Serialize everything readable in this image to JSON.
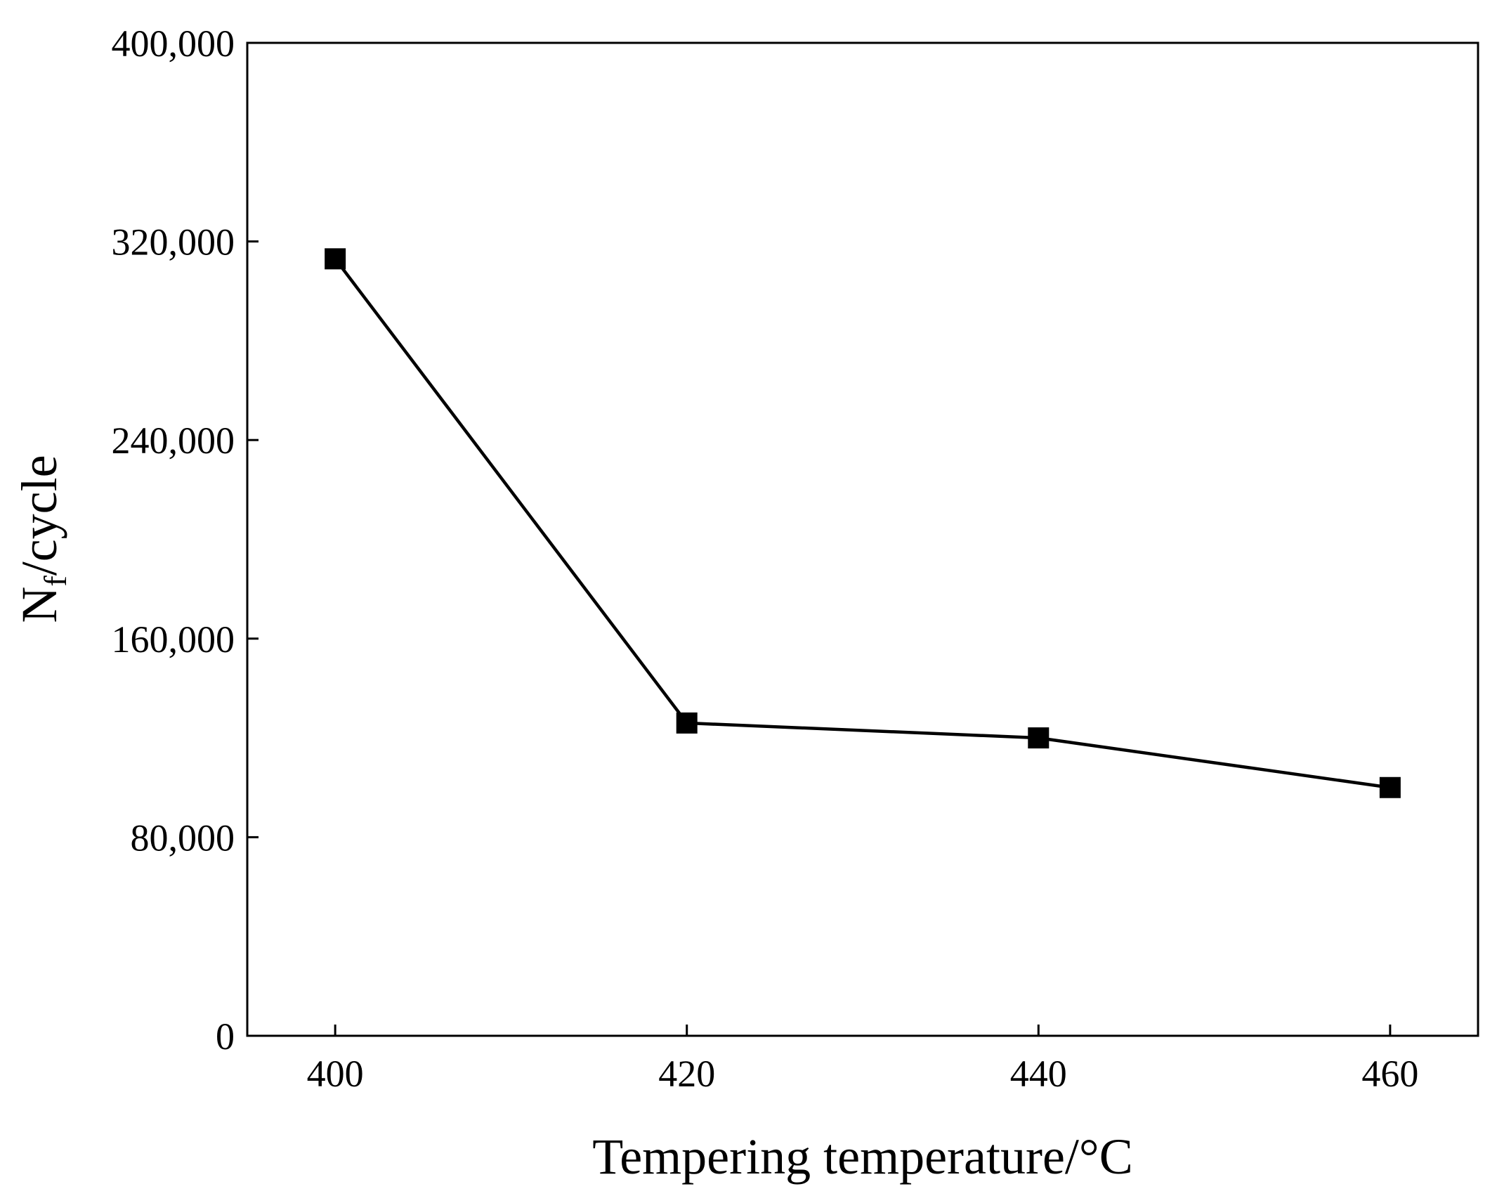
{
  "chart_data": {
    "type": "line",
    "title": "",
    "xlabel": "Tempering temperature/°C",
    "ylabel_main": "N",
    "ylabel_subscript": "f",
    "ylabel_suffix": "/cycle",
    "x_ticks": [
      "400",
      "420",
      "440",
      "460"
    ],
    "y_ticks": [
      "0",
      "80,000",
      "160,000",
      "240,000",
      "320,000",
      "400,000"
    ],
    "xlim": [
      395,
      465
    ],
    "ylim": [
      0,
      400000
    ],
    "grid": false,
    "series": [
      {
        "name": "Nf",
        "marker": "square",
        "color": "#000000",
        "x": [
          400,
          420,
          440,
          460
        ],
        "y": [
          313000,
          126000,
          120000,
          100000
        ]
      }
    ]
  }
}
